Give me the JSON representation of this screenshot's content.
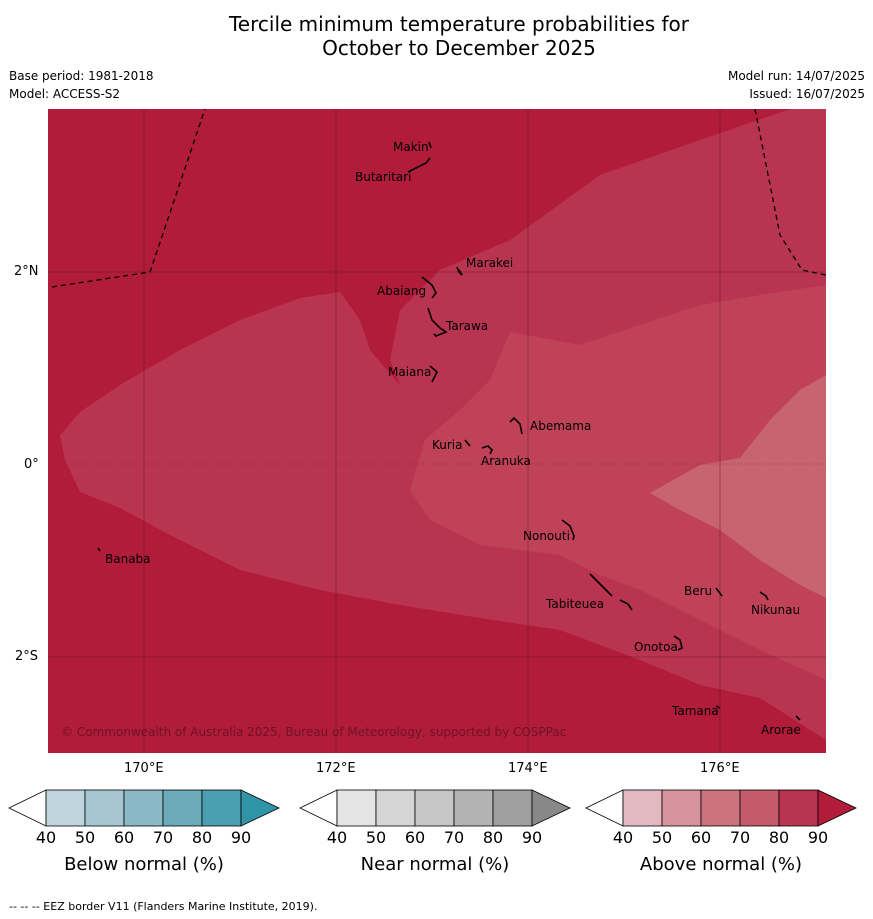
{
  "title_line1": "Tercile minimum temperature probabilities for",
  "title_line2": "October to December 2025",
  "base_period": "Base period: 1981-2018",
  "model": "Model: ACCESS-S2",
  "model_run": "Model run: 14/07/2025",
  "issued": "Issued: 16/07/2025",
  "copyright": "© Commonwealth of Australia 2025, Bureau of Meteorology, supported by COSPPac",
  "footnote": "--  --  -- EEZ border V11 (Flanders Marine Institute, 2019).",
  "lat_ticks": [
    "2°N",
    "0°",
    "2°S"
  ],
  "lon_ticks": [
    "170°E",
    "172°E",
    "174°E",
    "176°E"
  ],
  "islands": [
    "Makin",
    "Butaritari",
    "Marakei",
    "Abaiang",
    "Tarawa",
    "Maiana",
    "Abemama",
    "Kuria",
    "Aranuka",
    "Banaba",
    "Nonouti",
    "Tabiteuea",
    "Beru",
    "Nikunau",
    "Onotoa",
    "Tamana",
    "Arorae"
  ],
  "colorbars": [
    {
      "label": "Below normal (%)",
      "ticks": [
        "40",
        "50",
        "60",
        "70",
        "80",
        "90"
      ],
      "colors": [
        "#bfd5de",
        "#a6c7d1",
        "#8ab8c4",
        "#6baab8",
        "#4aa0b0",
        "#2e94a6"
      ]
    },
    {
      "label": "Near normal (%)",
      "ticks": [
        "40",
        "50",
        "60",
        "70",
        "80",
        "90"
      ],
      "colors": [
        "#e4e4e4",
        "#d5d5d5",
        "#c6c6c6",
        "#b3b3b3",
        "#9f9f9f",
        "#888888"
      ]
    },
    {
      "label": "Above normal (%)",
      "ticks": [
        "40",
        "50",
        "60",
        "70",
        "80",
        "90"
      ],
      "colors": [
        "#e2b9c0",
        "#d8949e",
        "#cd7380",
        "#c55a6b",
        "#b93450",
        "#b01c3a"
      ]
    }
  ],
  "map_colors": {
    "p90": "#b01c3a",
    "p80": "#b93450",
    "p70": "#c04258",
    "p60": "#c8646f"
  }
}
